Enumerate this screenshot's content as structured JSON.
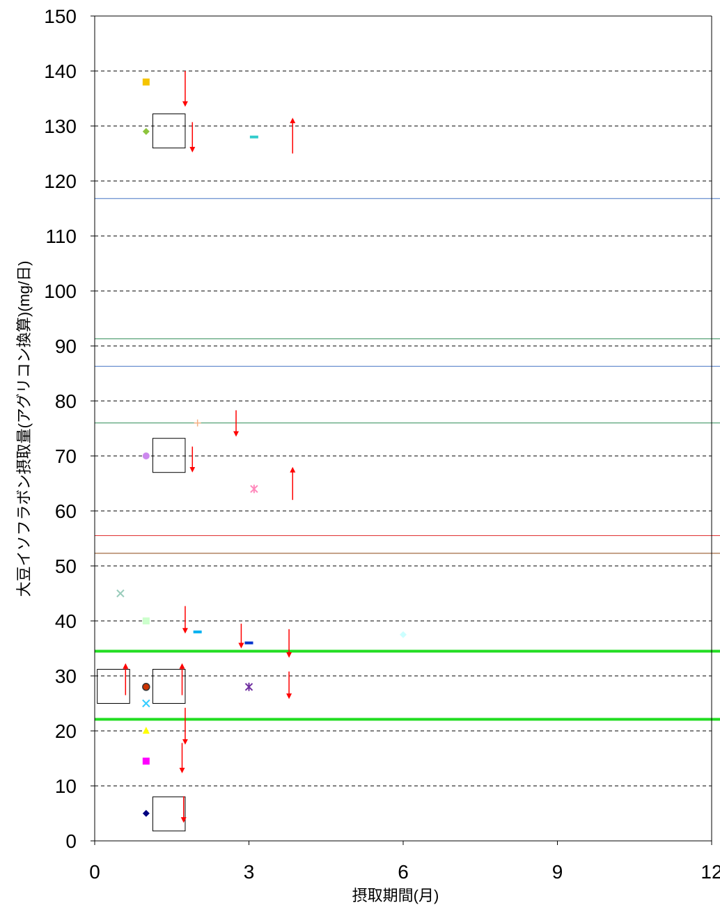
{
  "chart_data": {
    "type": "scatter",
    "title": "",
    "xlabel": "摂取期間(月)",
    "ylabel": "大豆イソフラボン摂取量(アグリコン換算)(mg/日)",
    "xlim": [
      0,
      12
    ],
    "ylim": [
      0,
      150
    ],
    "x_ticks": [
      "0",
      "3",
      "6",
      "9",
      "12"
    ],
    "y_ticks": [
      "0",
      "10",
      "20",
      "30",
      "40",
      "50",
      "60",
      "70",
      "80",
      "90",
      "100",
      "110",
      "120",
      "130",
      "140",
      "150"
    ],
    "grid": "horizontal dashed",
    "legend": "none",
    "points": [
      {
        "x": 1,
        "y": 138,
        "marker": "square",
        "color": "#f5c400"
      },
      {
        "x": 1,
        "y": 129,
        "marker": "diamond",
        "color": "#8dc43c"
      },
      {
        "x": 3.1,
        "y": 128,
        "marker": "dash",
        "color": "#33cccc"
      },
      {
        "x": 2,
        "y": 76,
        "marker": "plus",
        "color": "#f4b183"
      },
      {
        "x": 1,
        "y": 70,
        "marker": "circle",
        "color": "#cc88ee"
      },
      {
        "x": 3.1,
        "y": 64,
        "marker": "star",
        "color": "#ff88bb"
      },
      {
        "x": 0.5,
        "y": 45,
        "marker": "x",
        "color": "#99ccbb"
      },
      {
        "x": 1,
        "y": 40,
        "marker": "square",
        "color": "#ccffcc"
      },
      {
        "x": 2,
        "y": 38,
        "marker": "dash",
        "color": "#00b0f0"
      },
      {
        "x": 3,
        "y": 36,
        "marker": "dash",
        "color": "#0033cc"
      },
      {
        "x": 6,
        "y": 37.5,
        "marker": "diamond",
        "color": "#ccffff"
      },
      {
        "x": 1,
        "y": 28,
        "marker": "circle",
        "color": "#cc3300"
      },
      {
        "x": 3,
        "y": 28,
        "marker": "star",
        "color": "#7030a0"
      },
      {
        "x": 1,
        "y": 25,
        "marker": "x",
        "color": "#33ccff"
      },
      {
        "x": 1,
        "y": 20,
        "marker": "triangle",
        "color": "#ffff00"
      },
      {
        "x": 1,
        "y": 14.5,
        "marker": "square",
        "color": "#ff00ff"
      },
      {
        "x": 1,
        "y": 5,
        "marker": "diamond",
        "color": "#000080"
      }
    ],
    "reference_lines": [
      {
        "y": 116.8,
        "color": "#4472c4",
        "width": 1
      },
      {
        "y": 91.3,
        "color": "#2e8b57",
        "width": 1
      },
      {
        "y": 86.3,
        "color": "#4472c4",
        "width": 1
      },
      {
        "y": 76,
        "color": "#2e8b57",
        "width": 1
      },
      {
        "y": 55.5,
        "color": "#e03030",
        "width": 1
      },
      {
        "y": 52.3,
        "color": "#8b4513",
        "width": 1
      },
      {
        "y": 34.5,
        "color": "#22dd22",
        "width": 4
      },
      {
        "y": 22.1,
        "color": "#22dd22",
        "width": 4
      }
    ],
    "boxes": [
      {
        "x0": 1.13,
        "x1": 1.76,
        "y0": 126,
        "y1": 132.2
      },
      {
        "x0": 1.13,
        "x1": 1.76,
        "y0": 67,
        "y1": 73.2
      },
      {
        "x0": 0.05,
        "x1": 0.68,
        "y0": 25,
        "y1": 31.2
      },
      {
        "x0": 1.13,
        "x1": 1.76,
        "y0": 25,
        "y1": 31.2
      },
      {
        "x0": 1.13,
        "x1": 1.76,
        "y0": 1.8,
        "y1": 8
      }
    ],
    "arrows": [
      {
        "x": 1.76,
        "y0": 140,
        "y1": 134,
        "direction": "down"
      },
      {
        "x": 1.9,
        "y0": 130.7,
        "y1": 125.7,
        "direction": "down"
      },
      {
        "x": 3.85,
        "y0": 125,
        "y1": 131,
        "direction": "up"
      },
      {
        "x": 2.75,
        "y0": 78.3,
        "y1": 74,
        "direction": "down"
      },
      {
        "x": 1.9,
        "y0": 71.7,
        "y1": 67.5,
        "direction": "down"
      },
      {
        "x": 3.85,
        "y0": 62,
        "y1": 67.5,
        "direction": "up"
      },
      {
        "x": 1.76,
        "y0": 42.7,
        "y1": 38.2,
        "direction": "down"
      },
      {
        "x": 2.85,
        "y0": 39.5,
        "y1": 35.5,
        "direction": "down"
      },
      {
        "x": 3.78,
        "y0": 38.5,
        "y1": 33.8,
        "direction": "down"
      },
      {
        "x": 0.6,
        "y0": 26.5,
        "y1": 31.8,
        "direction": "up"
      },
      {
        "x": 1.7,
        "y0": 26.5,
        "y1": 31.8,
        "direction": "up"
      },
      {
        "x": 3.78,
        "y0": 30.8,
        "y1": 26.3,
        "direction": "down"
      },
      {
        "x": 1.76,
        "y0": 24.2,
        "y1": 18,
        "direction": "down"
      },
      {
        "x": 1.7,
        "y0": 17.8,
        "y1": 12.8,
        "direction": "down"
      },
      {
        "x": 1.73,
        "y0": 8.1,
        "y1": 3.8,
        "direction": "down"
      }
    ]
  }
}
